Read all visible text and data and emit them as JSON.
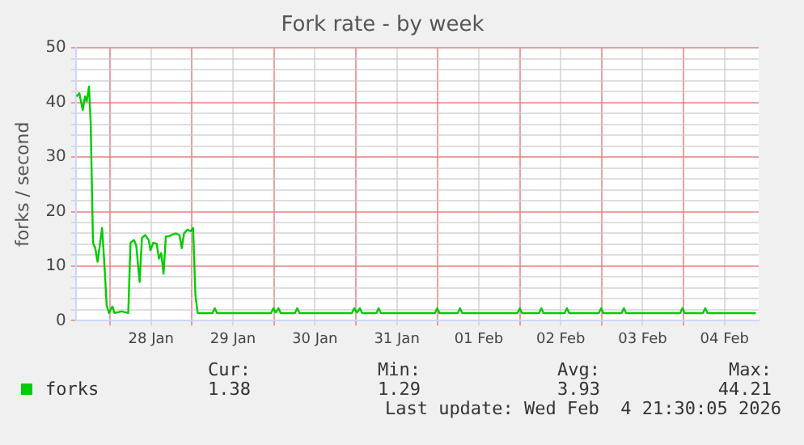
{
  "chart_data": {
    "type": "line",
    "title": "Fork rate - by week",
    "ylabel": "forks / second",
    "x": [
      "2026-01-27T14:10",
      "2026-01-27T15:00",
      "2026-01-27T16:00",
      "2026-01-27T16:40",
      "2026-01-27T17:10",
      "2026-01-27T17:50",
      "2026-01-27T18:20",
      "2026-01-27T19:00",
      "2026-01-27T19:40",
      "2026-01-27T20:20",
      "2026-01-27T21:00",
      "2026-01-27T21:40",
      "2026-01-27T22:20",
      "2026-01-27T23:00",
      "2026-01-27T23:40",
      "2026-01-28T00:40",
      "2026-01-28T01:20",
      "2026-01-28T03:20",
      "2026-01-28T05:20",
      "2026-01-28T06:00",
      "2026-01-28T07:00",
      "2026-01-28T07:40",
      "2026-01-28T08:40",
      "2026-01-28T09:20",
      "2026-01-28T10:20",
      "2026-01-28T11:20",
      "2026-01-28T11:50",
      "2026-01-28T12:40",
      "2026-01-28T13:40",
      "2026-01-28T14:20",
      "2026-01-28T15:00",
      "2026-01-28T15:40",
      "2026-01-28T16:20",
      "2026-01-28T17:20",
      "2026-01-28T18:20",
      "2026-01-28T19:20",
      "2026-01-28T20:20",
      "2026-01-28T21:00",
      "2026-01-28T21:40",
      "2026-01-28T22:40",
      "2026-01-28T23:40",
      "2026-01-29T00:20",
      "2026-01-29T01:00",
      "2026-01-29T01:40",
      "2026-01-29T04:10",
      "2026-01-29T06:00",
      "2026-01-29T06:40",
      "2026-01-29T07:20",
      "2026-01-29T23:10",
      "2026-01-29T23:50",
      "2026-01-30T00:30",
      "2026-01-30T01:20",
      "2026-01-30T02:00",
      "2026-01-30T06:10",
      "2026-01-30T06:50",
      "2026-01-30T07:30",
      "2026-01-30T22:50",
      "2026-01-30T23:30",
      "2026-01-31T00:20",
      "2026-01-31T01:10",
      "2026-01-31T01:50",
      "2026-01-31T06:00",
      "2026-01-31T06:40",
      "2026-01-31T07:20",
      "2026-01-31T23:10",
      "2026-01-31T23:50",
      "2026-02-01T00:30",
      "2026-02-01T05:50",
      "2026-02-01T06:30",
      "2026-02-01T07:10",
      "2026-02-01T23:20",
      "2026-02-02T00:00",
      "2026-02-02T00:40",
      "2026-02-02T05:40",
      "2026-02-02T06:20",
      "2026-02-02T07:00",
      "2026-02-02T13:10",
      "2026-02-02T13:50",
      "2026-02-02T14:30",
      "2026-02-02T23:10",
      "2026-02-02T23:50",
      "2026-02-03T00:30",
      "2026-02-03T05:50",
      "2026-02-03T06:30",
      "2026-02-03T07:10",
      "2026-02-03T23:00",
      "2026-02-03T23:40",
      "2026-02-04T00:20",
      "2026-02-04T05:40",
      "2026-02-04T06:20",
      "2026-02-04T07:00",
      "2026-02-04T21:10"
    ],
    "series": [
      {
        "name": "forks",
        "color": "#00cc00",
        "values": [
          41.1,
          41.7,
          38.6,
          41.1,
          40.2,
          42.9,
          36.2,
          14.3,
          13.3,
          10.8,
          13.8,
          17,
          10.5,
          2.9,
          1.4,
          2.6,
          1.4,
          1.7,
          1.4,
          14.3,
          14.8,
          13.8,
          7.1,
          15.2,
          15.7,
          14.8,
          12.9,
          14.3,
          14.1,
          11.4,
          12.4,
          8.6,
          15.4,
          15.5,
          15.8,
          16,
          15.7,
          13.3,
          16,
          16.7,
          16.4,
          17,
          4.8,
          1.4,
          1.4,
          1.4,
          2.3,
          1.4,
          1.4,
          2.3,
          1.5,
          2.3,
          1.4,
          1.4,
          2.3,
          1.4,
          1.4,
          2.3,
          1.5,
          2.3,
          1.4,
          1.4,
          2.3,
          1.4,
          1.4,
          2.3,
          1.4,
          1.4,
          2.3,
          1.4,
          1.4,
          2.3,
          1.4,
          1.4,
          2.3,
          1.4,
          1.4,
          2.3,
          1.4,
          1.4,
          2.3,
          1.4,
          1.4,
          2.3,
          1.4,
          1.4,
          2.3,
          1.4,
          1.4,
          2.3,
          1.4,
          1.4
        ]
      }
    ],
    "xlim": [
      "2026-01-27T14:00",
      "2026-02-04T22:00"
    ],
    "xticks": [
      {
        "value": "2026-01-28T00:00",
        "label": null
      },
      {
        "value": "2026-01-28T12:00",
        "label": "28 Jan"
      },
      {
        "value": "2026-01-29T00:00",
        "label": null
      },
      {
        "value": "2026-01-29T12:00",
        "label": "29 Jan"
      },
      {
        "value": "2026-01-30T00:00",
        "label": null
      },
      {
        "value": "2026-01-30T12:00",
        "label": "30 Jan"
      },
      {
        "value": "2026-01-31T00:00",
        "label": null
      },
      {
        "value": "2026-01-31T12:00",
        "label": "31 Jan"
      },
      {
        "value": "2026-02-01T00:00",
        "label": null
      },
      {
        "value": "2026-02-01T12:00",
        "label": "01 Feb"
      },
      {
        "value": "2026-02-02T00:00",
        "label": null
      },
      {
        "value": "2026-02-02T12:00",
        "label": "02 Feb"
      },
      {
        "value": "2026-02-03T00:00",
        "label": null
      },
      {
        "value": "2026-02-03T12:00",
        "label": "03 Feb"
      },
      {
        "value": "2026-02-04T00:00",
        "label": null
      },
      {
        "value": "2026-02-04T12:00",
        "label": "04 Feb"
      }
    ],
    "ylim": [
      0,
      50
    ],
    "yticks": [
      0,
      {
        "value": 2,
        "label": null
      },
      {
        "value": 4,
        "label": null
      },
      {
        "value": 6,
        "label": null
      },
      {
        "value": 8,
        "label": null
      },
      10,
      {
        "value": 12,
        "label": null
      },
      {
        "value": 14,
        "label": null
      },
      {
        "value": 16,
        "label": null
      },
      {
        "value": 18,
        "label": null
      },
      20,
      {
        "value": 22,
        "label": null
      },
      {
        "value": 24,
        "label": null
      },
      {
        "value": 26,
        "label": null
      },
      {
        "value": 28,
        "label": null
      },
      30,
      {
        "value": 32,
        "label": null
      },
      {
        "value": 34,
        "label": null
      },
      {
        "value": 36,
        "label": null
      },
      {
        "value": 38,
        "label": null
      },
      40,
      {
        "value": 42,
        "label": null
      },
      {
        "value": 44,
        "label": null
      },
      {
        "value": 46,
        "label": null
      },
      {
        "value": 48,
        "label": null
      },
      50
    ],
    "grid": true,
    "legend": "bottom left",
    "marker": "none",
    "line_style": "solid",
    "annotations": [
      "Cur:",
      "Min:",
      "Avg:",
      "Max:",
      "1.38",
      "1.29",
      "3.93",
      "44.21",
      "Last update: Wed Feb  4 21:30:05 2026"
    ]
  }
}
